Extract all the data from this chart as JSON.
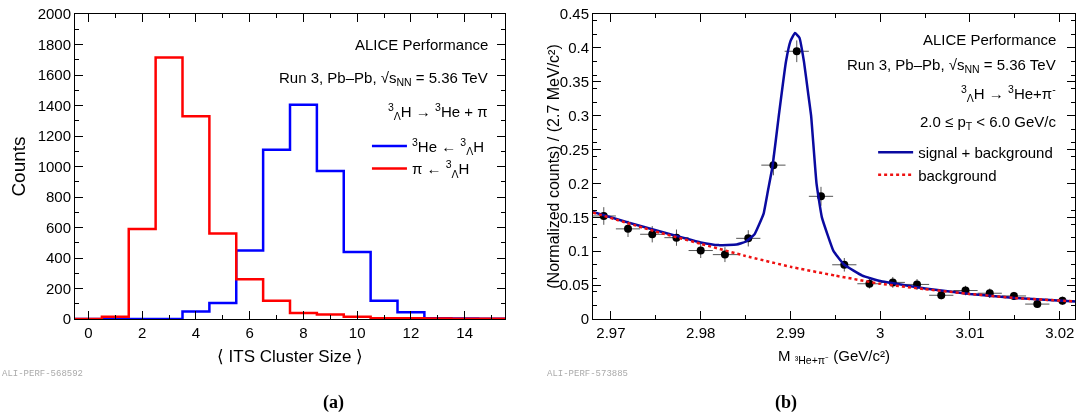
{
  "chart_data": [
    {
      "type": "histogram",
      "xlabel": "⟨ ITS Cluster Size ⟩",
      "ylabel": "Counts",
      "bins": [
        -0.5,
        0.5,
        1.5,
        2.5,
        3.5,
        4.5,
        5.5,
        6.5,
        7.5,
        8.5,
        9.5,
        10.5,
        11.5,
        12.5,
        13.5,
        14.5,
        15.5
      ],
      "series": [
        {
          "name": "$^{3}$He ← $^{3}$$_{Λ}$H",
          "color": "#0000ff",
          "values": [
            0,
            0,
            0,
            0,
            50,
            105,
            450,
            1110,
            1405,
            970,
            440,
            120,
            45,
            5,
            3,
            2
          ]
        },
        {
          "name": "π ← $^{3}$$_{Λ}$H",
          "color": "#ff0000",
          "values": [
            0,
            15,
            590,
            1715,
            1330,
            560,
            260,
            120,
            40,
            30,
            15,
            5,
            5,
            3,
            2,
            1
          ]
        }
      ],
      "xlim": [
        -0.5,
        15.5
      ],
      "ylim": [
        0,
        2000
      ],
      "xticks": [
        0,
        2,
        4,
        6,
        8,
        10,
        12,
        14
      ],
      "yticks": [
        0,
        200,
        400,
        600,
        800,
        1000,
        1200,
        1400,
        1600,
        1800,
        2000
      ],
      "grid": false,
      "legend": "right",
      "annotations": [
        "ALICE Performance",
        "Run 3, Pb–Pb, √s$_{NN}$ = 5.36 TeV",
        "$^{3}$$_{Λ}$H → $^{3}$He + π",
        "ALI-PERF-568592",
        "(a)"
      ]
    },
    {
      "type": "scatter",
      "xlabel": "M $_{³He+π⁻}$ (GeV/c²)",
      "ylabel": "(Normalized counts) / (2.7 MeV/c²)",
      "series": [
        {
          "type": "scatter",
          "color": "#000000",
          "marker": "circle",
          "x": [
            2.9692,
            2.9719,
            2.9746,
            2.9773,
            2.98,
            2.9827,
            2.9853,
            2.9881,
            2.9907,
            2.9934,
            2.996,
            2.9988,
            3.0014,
            3.0041,
            3.0068,
            3.0095,
            3.0122,
            3.0149,
            3.0175,
            3.0203
          ],
          "values": [
            0.152,
            0.133,
            0.125,
            0.12,
            0.101,
            0.095,
            0.119,
            0.227,
            0.395,
            0.181,
            0.08,
            0.052,
            0.054,
            0.051,
            0.035,
            0.042,
            0.038,
            0.034,
            0.022,
            0.027
          ],
          "errors": [
            0.013,
            0.012,
            0.012,
            0.012,
            0.011,
            0.011,
            0.012,
            0.015,
            0.016,
            0.014,
            0.01,
            0.007,
            0.008,
            0.008,
            0.006,
            0.007,
            0.007,
            0.006,
            0.005,
            0.006
          ],
          "xerrors": [
            0.00135,
            0.00135,
            0.00135,
            0.00135,
            0.00135,
            0.00135,
            0.00135,
            0.00135,
            0.00135,
            0.00135,
            0.00135,
            0.00135,
            0.00135,
            0.00135,
            0.00135,
            0.00135,
            0.00135,
            0.00135,
            0.00135,
            0.00135
          ]
        },
        {
          "type": "line",
          "name": "signal + background",
          "color": "#0a0aa0",
          "line_style": "solid",
          "x": [
            2.968,
            2.972,
            2.975,
            2.978,
            2.98,
            2.982,
            2.984,
            2.985,
            2.986,
            2.987,
            2.9875,
            2.988,
            2.9887,
            2.9895,
            2.99,
            2.9905,
            2.991,
            2.9915,
            2.992,
            2.9923,
            2.9929,
            2.9935,
            2.9948,
            2.996,
            2.998,
            3.0,
            3.005,
            3.01,
            3.015,
            3.0217
          ],
          "values": [
            0.158,
            0.142,
            0.131,
            0.12,
            0.113,
            0.109,
            0.11,
            0.114,
            0.125,
            0.155,
            0.19,
            0.225,
            0.3,
            0.38,
            0.41,
            0.422,
            0.415,
            0.38,
            0.33,
            0.3,
            0.2,
            0.15,
            0.1,
            0.08,
            0.064,
            0.056,
            0.045,
            0.037,
            0.031,
            0.026
          ]
        },
        {
          "type": "line",
          "name": "background",
          "color": "#ee1111",
          "line_style": "dotted",
          "x": [
            2.968,
            2.975,
            2.98,
            2.985,
            2.99,
            2.995,
            3.0,
            3.005,
            3.01,
            3.015,
            3.0217
          ],
          "values": [
            0.157,
            0.129,
            0.111,
            0.093,
            0.077,
            0.064,
            0.052,
            0.044,
            0.037,
            0.031,
            0.026
          ]
        }
      ],
      "xlim": [
        2.968,
        3.0217
      ],
      "ylim": [
        0,
        0.45
      ],
      "xticks": [
        2.97,
        2.98,
        2.99,
        3,
        3.01,
        3.02
      ],
      "yticks": [
        0,
        0.05,
        0.1,
        0.15,
        0.2,
        0.25,
        0.3,
        0.35,
        0.4,
        0.45
      ],
      "grid": false,
      "legend": "right",
      "annotations": [
        "ALICE Performance",
        "Run 3, Pb–Pb, √s$_{NN}$ = 5.36 TeV",
        "$^{3}$$_{Λ}$H → $^{3}$He+π$^{-}$",
        "2.0 ≤ p$_{T}$ < 6.0 GeV/c",
        "ALI-PERF-573885",
        "(b)"
      ]
    }
  ]
}
